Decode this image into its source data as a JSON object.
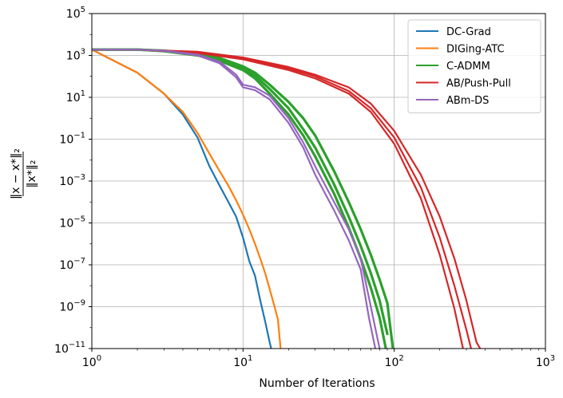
{
  "chart_data": {
    "type": "line",
    "xscale": "log",
    "yscale": "log",
    "xlabel": "Number of Iterations",
    "ylabel": {
      "numerator": "‖x − x*‖₂",
      "denominator": "‖x*‖₂"
    },
    "xlim": [
      1,
      1000
    ],
    "ylim": [
      1e-11,
      100000
    ],
    "x_ticks": [
      {
        "base": "10",
        "exp": "0"
      },
      {
        "base": "10",
        "exp": "1"
      },
      {
        "base": "10",
        "exp": "2"
      },
      {
        "base": "10",
        "exp": "3"
      }
    ],
    "y_ticks": [
      {
        "base": "10",
        "exp": "−11"
      },
      {
        "base": "10",
        "exp": "−9"
      },
      {
        "base": "10",
        "exp": "−7"
      },
      {
        "base": "10",
        "exp": "−5"
      },
      {
        "base": "10",
        "exp": "−3"
      },
      {
        "base": "10",
        "exp": "−1"
      },
      {
        "base": "10",
        "exp": "1"
      },
      {
        "base": "10",
        "exp": "3"
      },
      {
        "base": "10",
        "exp": "5"
      }
    ],
    "grid": true,
    "legend_position": "top-right",
    "series": [
      {
        "name": "DC-Grad",
        "color": "#1f77b4",
        "runs": [
          {
            "x": [
              1,
              2,
              3,
              4,
              5,
              6,
              7,
              8,
              9,
              10,
              11,
              12,
              13,
              14,
              15,
              16
            ],
            "y": [
              1900,
              150,
              15,
              1.5,
              0.12,
              0.005,
              0.0006,
              0.0001,
              2e-05,
              2e-06,
              1.5e-07,
              3e-08,
              2e-09,
              2e-10,
              2e-11,
              3e-12
            ]
          }
        ]
      },
      {
        "name": "DIGing-ATC",
        "color": "#ff7f0e",
        "runs": [
          {
            "x": [
              1,
              2,
              3,
              4,
              5,
              6,
              7,
              8,
              9,
              10,
              11,
              12,
              13,
              14,
              15,
              16,
              17,
              18
            ],
            "y": [
              1900,
              150,
              15,
              2,
              0.2,
              0.02,
              0.003,
              0.0006,
              0.00012,
              2.5e-05,
              5e-06,
              1e-06,
              2e-07,
              4e-08,
              7e-09,
              1.3e-09,
              2.5e-10,
              3e-12
            ]
          }
        ]
      },
      {
        "name": "C-ADMM",
        "color": "#2ca02c",
        "runs": [
          {
            "x": [
              1,
              2,
              3,
              5,
              7,
              10,
              12,
              15,
              20,
              25,
              30,
              40,
              50,
              60,
              70,
              80,
              90,
              98
            ],
            "y": [
              1900,
              1900,
              1700,
              1200,
              750,
              300,
              150,
              40,
              6,
              1,
              0.15,
              0.003,
              0.0001,
              5e-06,
              3e-07,
              2e-08,
              1.5e-09,
              1e-11
            ]
          },
          {
            "x": [
              1,
              2,
              3,
              5,
              7,
              10,
              12,
              15,
              20,
              25,
              30,
              40,
              50,
              60,
              70,
              80,
              90
            ],
            "y": [
              1900,
              1900,
              1650,
              1100,
              650,
              250,
              110,
              25,
              3,
              0.3,
              0.04,
              0.0007,
              2e-05,
              8e-07,
              4e-08,
              2e-09,
              5e-11
            ]
          },
          {
            "x": [
              1,
              2,
              3,
              5,
              7,
              10,
              12,
              15,
              20,
              25,
              30,
              40,
              50,
              60,
              70,
              80,
              88
            ],
            "y": [
              1900,
              1900,
              1600,
              1000,
              550,
              200,
              80,
              15,
              1.5,
              0.15,
              0.015,
              0.00025,
              6e-06,
              2e-07,
              8e-09,
              3e-10,
              1e-11
            ]
          }
        ]
      },
      {
        "name": "AB/Push-Pull",
        "color": "#d62728",
        "runs": [
          {
            "x": [
              1,
              2,
              5,
              10,
              20,
              30,
              50,
              70,
              100,
              150,
              200,
              250,
              300,
              350,
              370
            ],
            "y": [
              1900,
              1900,
              1500,
              800,
              280,
              120,
              30,
              5,
              0.25,
              0.002,
              2e-05,
              2e-07,
              2e-09,
              2e-11,
              1e-11
            ]
          },
          {
            "x": [
              1,
              2,
              5,
              10,
              20,
              30,
              50,
              70,
              100,
              150,
              200,
              250,
              300,
              330
            ],
            "y": [
              1900,
              1900,
              1400,
              700,
              240,
              100,
              20,
              3,
              0.12,
              0.0005,
              2e-06,
              1e-08,
              8e-11,
              5e-12
            ]
          },
          {
            "x": [
              1,
              2,
              5,
              10,
              20,
              30,
              50,
              70,
              100,
              150,
              200,
              250,
              285
            ],
            "y": [
              1900,
              1900,
              1300,
              650,
              200,
              80,
              15,
              2,
              0.06,
              0.00015,
              3e-07,
              8e-10,
              1e-11
            ]
          }
        ]
      },
      {
        "name": "ABm-DS",
        "color": "#9467bd",
        "runs": [
          {
            "x": [
              1,
              2,
              3,
              5,
              7,
              9,
              10,
              12,
              15,
              20,
              25,
              30,
              40,
              50,
              60,
              70,
              80
            ],
            "y": [
              1900,
              1900,
              1700,
              1100,
              500,
              120,
              40,
              30,
              12,
              1,
              0.07,
              0.005,
              0.0001,
              5e-06,
              2e-07,
              1e-09,
              1e-11
            ]
          },
          {
            "x": [
              1,
              2,
              3,
              5,
              7,
              9,
              10,
              12,
              15,
              20,
              25,
              30,
              40,
              50,
              60,
              68,
              75
            ],
            "y": [
              1900,
              1900,
              1650,
              1000,
              420,
              90,
              30,
              22,
              8,
              0.6,
              0.04,
              0.002,
              4e-05,
              1.5e-06,
              6e-08,
              3e-10,
              1e-11
            ]
          }
        ]
      }
    ]
  }
}
